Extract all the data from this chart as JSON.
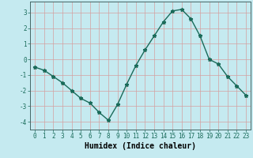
{
  "x": [
    0,
    1,
    2,
    3,
    4,
    5,
    6,
    7,
    8,
    9,
    10,
    11,
    12,
    13,
    14,
    15,
    16,
    17,
    18,
    19,
    20,
    21,
    22,
    23
  ],
  "y": [
    -0.5,
    -0.7,
    -1.1,
    -1.5,
    -2.0,
    -2.5,
    -2.8,
    -3.4,
    -3.9,
    -2.9,
    -1.6,
    -0.4,
    0.6,
    1.5,
    2.4,
    3.1,
    3.2,
    2.6,
    1.5,
    0.0,
    -0.3,
    -1.1,
    -1.7,
    -2.3
  ],
  "line_color": "#1a6b5a",
  "marker": "*",
  "marker_size": 3.5,
  "bg_color": "#c5eaf0",
  "grid_color": "#d4a0a0",
  "xlabel": "Humidex (Indice chaleur)",
  "xlim_min": -0.5,
  "xlim_max": 23.5,
  "ylim_min": -4.5,
  "ylim_max": 3.7,
  "yticks": [
    -4,
    -3,
    -2,
    -1,
    0,
    1,
    2,
    3
  ],
  "xticks": [
    0,
    1,
    2,
    3,
    4,
    5,
    6,
    7,
    8,
    9,
    10,
    11,
    12,
    13,
    14,
    15,
    16,
    17,
    18,
    19,
    20,
    21,
    22,
    23
  ],
  "tick_fontsize": 5.5,
  "label_fontsize": 7,
  "line_width": 1.0
}
